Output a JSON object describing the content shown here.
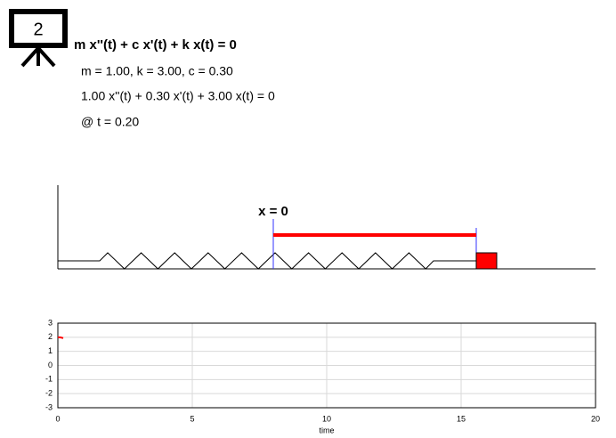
{
  "header": {
    "icon_label": "2",
    "equation": "m x''(t) + c x'(t) + k x(t) = 0",
    "parameters": "m = 1.00, k = 3.00, c = 0.30",
    "instance": "1.00 x''(t) + 0.30 x'(t) + 3.00 x(t) = 0",
    "time": "@ t = 0.20"
  },
  "diagram": {
    "origin_label": "x = 0"
  },
  "chart_data": {
    "type": "line",
    "xlabel": "time",
    "x": [
      0,
      0.1,
      0.2
    ],
    "series": [
      {
        "color": "#ff0000",
        "values": [
          2,
          1.99,
          1.94
        ]
      }
    ],
    "xlim": [
      0,
      20
    ],
    "xticks": [
      0,
      5,
      10,
      15,
      20
    ],
    "ylim": [
      -3,
      3
    ],
    "yticks": [
      -3,
      -2,
      -1,
      0,
      1,
      2,
      3
    ],
    "grid": true
  }
}
